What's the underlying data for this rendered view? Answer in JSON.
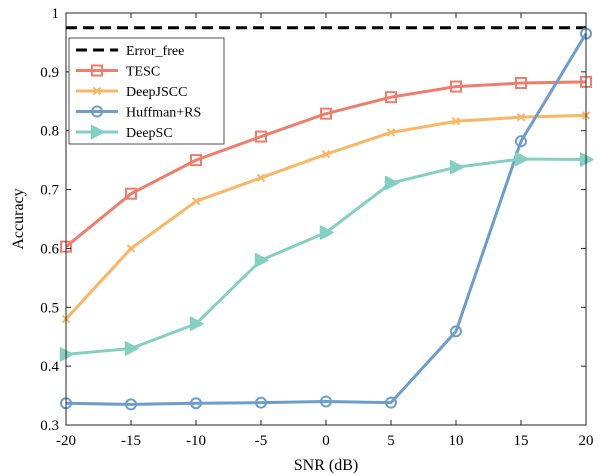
{
  "chart_data": {
    "type": "line",
    "xlabel": "SNR (dB)",
    "ylabel": "Accuracy",
    "x": [
      -20,
      -15,
      -10,
      -5,
      0,
      5,
      10,
      15,
      20
    ],
    "xlim": [
      -20,
      20
    ],
    "ylim": [
      0.3,
      1.0
    ],
    "xticks": [
      "-20",
      "-15",
      "-10",
      "-5",
      "0",
      "5",
      "10",
      "15",
      "20"
    ],
    "yticks": [
      "0.3",
      "0.4",
      "0.5",
      "0.6",
      "0.7",
      "0.8",
      "0.9",
      "1"
    ],
    "grid": false,
    "legend_position": "top-left",
    "series": [
      {
        "name": "Error_free",
        "values": [
          0.975,
          0.975,
          0.975,
          0.975,
          0.975,
          0.975,
          0.975,
          0.975,
          0.975
        ],
        "color": "#000000",
        "marker": "none",
        "dashed": true
      },
      {
        "name": "TESC",
        "values": [
          0.603,
          0.693,
          0.75,
          0.79,
          0.829,
          0.857,
          0.875,
          0.881,
          0.883
        ],
        "color": "#f07c6c",
        "marker": "square"
      },
      {
        "name": "DeepJSCC",
        "values": [
          0.48,
          0.6,
          0.68,
          0.72,
          0.76,
          0.797,
          0.816,
          0.823,
          0.826
        ],
        "color": "#f9b664",
        "marker": "x"
      },
      {
        "name": "Huffman+RS",
        "values": [
          0.337,
          0.335,
          0.337,
          0.338,
          0.34,
          0.338,
          0.459,
          0.782,
          0.965
        ],
        "color": "#6c9dcb",
        "marker": "circle"
      },
      {
        "name": "DeepSC",
        "values": [
          0.42,
          0.43,
          0.472,
          0.58,
          0.627,
          0.711,
          0.738,
          0.752,
          0.751
        ],
        "color": "#84cfc1",
        "marker": "triangle-right"
      }
    ]
  }
}
